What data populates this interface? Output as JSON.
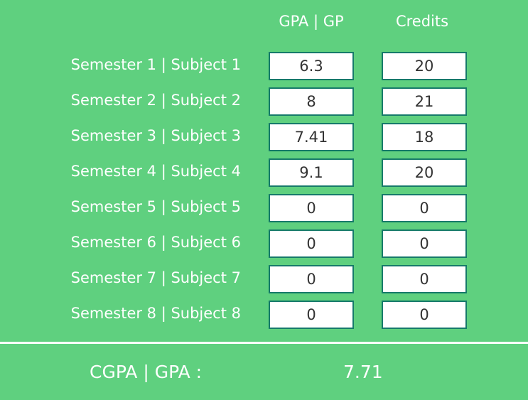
{
  "headers": {
    "gpa": "GPA | GP",
    "credits": "Credits"
  },
  "rows": [
    {
      "label": "Semester 1 | Subject 1",
      "gpa": "6.3",
      "credits": "20"
    },
    {
      "label": "Semester 2 | Subject 2",
      "gpa": "8",
      "credits": "21"
    },
    {
      "label": "Semester 3 | Subject 3",
      "gpa": "7.41",
      "credits": "18"
    },
    {
      "label": "Semester 4 | Subject 4",
      "gpa": "9.1",
      "credits": "20"
    },
    {
      "label": "Semester 5 | Subject 5",
      "gpa": "0",
      "credits": "0"
    },
    {
      "label": "Semester 6 | Subject 6",
      "gpa": "0",
      "credits": "0"
    },
    {
      "label": "Semester 7 | Subject 7",
      "gpa": "0",
      "credits": "0"
    },
    {
      "label": "Semester 8 | Subject 8",
      "gpa": "0",
      "credits": "0"
    }
  ],
  "result": {
    "label": "CGPA | GPA :",
    "value": "7.71"
  },
  "colors": {
    "background": "#5fd07f",
    "input_border": "#167a6a",
    "text_light": "#ffffff",
    "input_text": "#333333"
  }
}
